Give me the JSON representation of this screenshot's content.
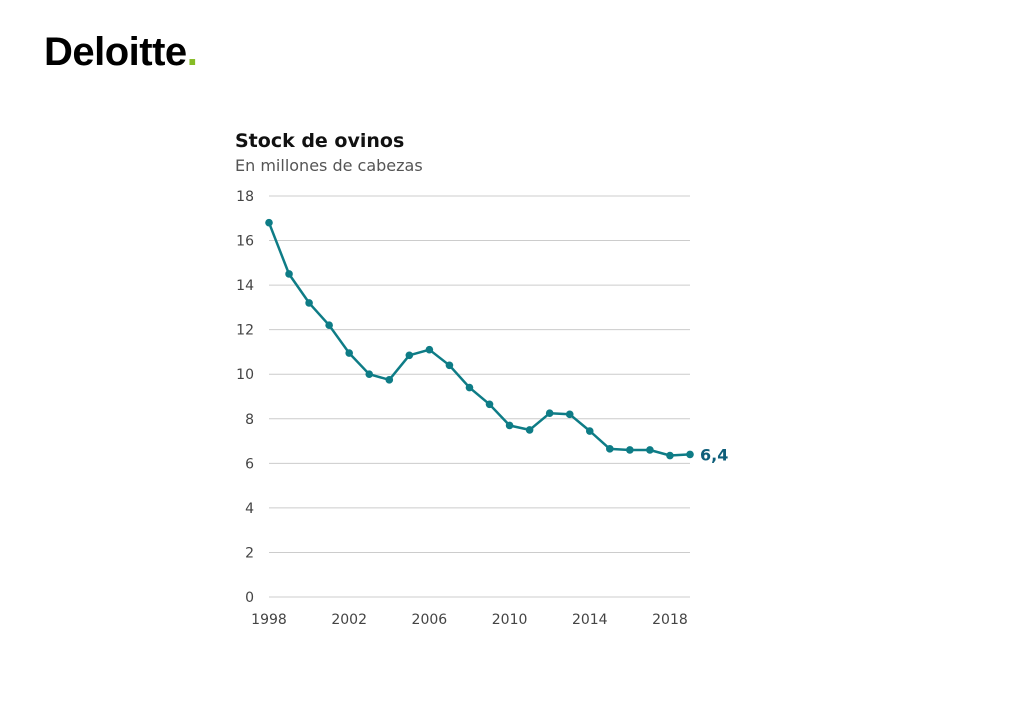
{
  "logo": {
    "text": "Deloitte",
    "dot": "."
  },
  "colors": {
    "series": "#0e7c86",
    "label": "#0d5e7a",
    "grid": "#cccccc",
    "logo_dot": "#86bc25"
  },
  "chart_data": {
    "type": "line",
    "title": "Stock de ovinos",
    "subtitle": "En millones de cabezas",
    "xlabel": "",
    "ylabel": "",
    "xlim": [
      1998,
      2019
    ],
    "ylim": [
      0,
      18
    ],
    "x_ticks": [
      1998,
      2002,
      2006,
      2010,
      2014,
      2018
    ],
    "y_ticks": [
      0,
      2,
      4,
      6,
      8,
      10,
      12,
      14,
      16,
      18
    ],
    "grid": true,
    "x": [
      1998,
      1999,
      2000,
      2001,
      2002,
      2003,
      2004,
      2005,
      2006,
      2007,
      2008,
      2009,
      2010,
      2011,
      2012,
      2013,
      2014,
      2015,
      2016,
      2017,
      2018,
      2019
    ],
    "values": [
      16.8,
      14.5,
      13.2,
      12.2,
      10.95,
      10.0,
      9.75,
      10.85,
      11.1,
      10.4,
      9.4,
      8.65,
      7.7,
      7.5,
      8.25,
      8.2,
      7.45,
      6.65,
      6.6,
      6.6,
      6.35,
      6.4
    ],
    "end_label": "6,4"
  }
}
